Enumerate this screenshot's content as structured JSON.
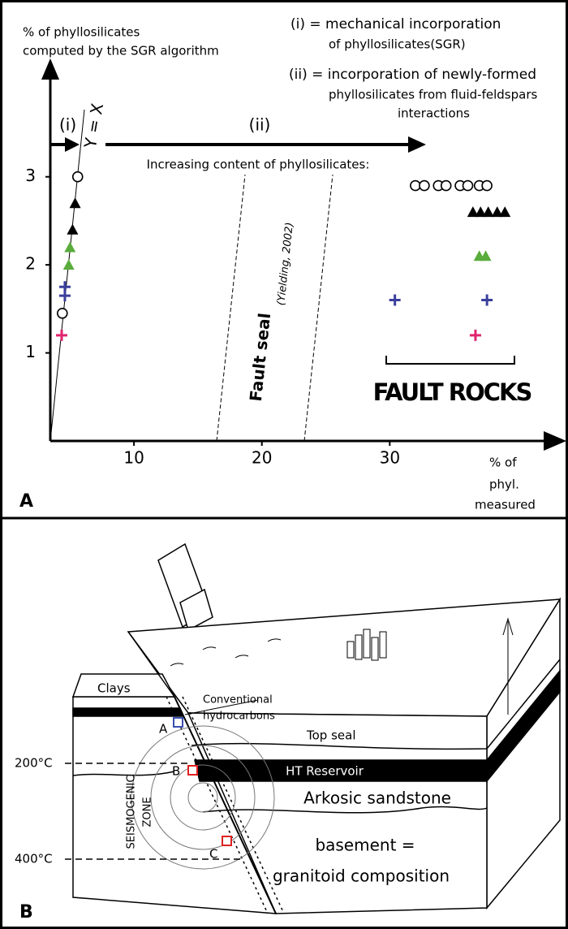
{
  "chart_data": {
    "type": "scatter",
    "panel_label": "A",
    "y_label_lines": [
      "% of phyllosilicates",
      "computed by the SGR algorithm"
    ],
    "x_label_lines": [
      "% of",
      "phyl.",
      "measured"
    ],
    "notes": [
      "(i) = mechanical incorporation",
      "of phyllosilicates(SGR)",
      "(ii) = incorporation of newly-formed",
      "phyllosilicates from fluid-feldspars",
      "interactions"
    ],
    "annotations": {
      "i": "(i)",
      "ii": "(ii)",
      "y_equals_x": "Y = X",
      "increasing": "Increasing content of phyllosilicates:",
      "fault_seal": "Fault seal",
      "citation": "(Yielding, 2002)",
      "fault_rocks": "FAULT ROCKS"
    },
    "xlim": [
      3.46,
      43.3
    ],
    "ylim": [
      0,
      4.27
    ],
    "xticks": [
      10,
      20,
      30
    ],
    "yticks": [
      1,
      2,
      3
    ],
    "series": [
      {
        "marker": "circle",
        "color": "#000000",
        "x": [
          5.6,
          4.4,
          32.0,
          32.7,
          33.8,
          34.4,
          35.5,
          36.1,
          37.0,
          37.6
        ],
        "values": [
          3.0,
          1.45,
          2.9,
          2.9,
          2.9,
          2.9,
          2.9,
          2.9,
          2.9,
          2.9
        ]
      },
      {
        "marker": "triangle",
        "color": "#000000",
        "x": [
          5.4,
          5.2,
          36.5,
          37.1,
          37.7,
          38.4,
          39.0
        ],
        "values": [
          2.7,
          2.4,
          2.6,
          2.6,
          2.6,
          2.6,
          2.6
        ]
      },
      {
        "marker": "triangle",
        "color": "#5aac3c",
        "x": [
          5.0,
          4.9,
          37.0,
          37.5
        ],
        "values": [
          2.2,
          2.0,
          2.1,
          2.1
        ]
      },
      {
        "marker": "plus",
        "color": "#3a3f9c",
        "x": [
          4.6,
          4.6,
          30.4,
          37.6
        ],
        "values": [
          1.75,
          1.65,
          1.6,
          1.6
        ]
      },
      {
        "marker": "plus",
        "color": "#e0246e",
        "x": [
          4.35,
          36.7
        ],
        "values": [
          1.2,
          1.2
        ]
      }
    ]
  },
  "diagram": {
    "panel_label": "B",
    "labels": {
      "clays": "Clays",
      "conventional": "Conventional",
      "hydrocarbons": "hydrocarbons",
      "a": "A",
      "top_seal": "Top seal",
      "t200": "200°C",
      "b": "B",
      "ht_reservoir": "HT Reservoir",
      "seismogenic": "SEISMOGENIC",
      "zone": "ZONE",
      "arkosic": "Arkosic sandstone",
      "c": "C",
      "basement": "basement =",
      "granitoid": "granitoid composition",
      "t400": "400°C"
    }
  }
}
